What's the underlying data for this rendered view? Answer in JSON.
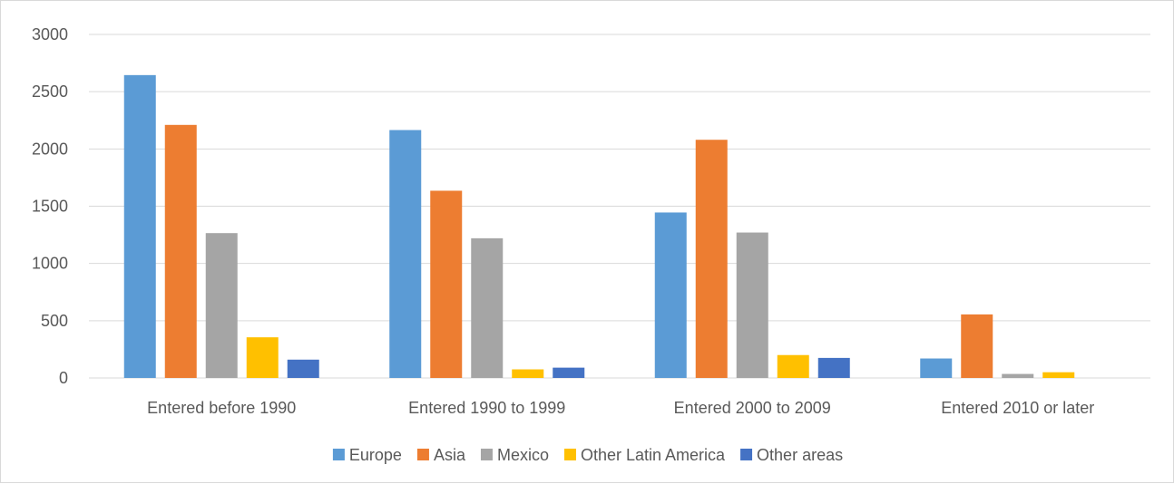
{
  "chart_data": {
    "type": "bar",
    "title": "",
    "xlabel": "",
    "ylabel": "",
    "ylim": [
      0,
      3000
    ],
    "yticks": [
      "0",
      "500",
      "1000",
      "1500",
      "2000",
      "2500",
      "3000"
    ],
    "grid": true,
    "legend_position": "bottom",
    "categories": [
      "Entered before 1990",
      "Entered 1990 to 1999",
      "Entered 2000 to 2009",
      "Entered 2010 or later"
    ],
    "series": [
      {
        "name": "Europe",
        "color": "#5b9bd5",
        "values": [
          2645,
          2165,
          1445,
          170
        ]
      },
      {
        "name": "Asia",
        "color": "#ed7d31",
        "values": [
          2210,
          1635,
          2080,
          555
        ]
      },
      {
        "name": "Mexico",
        "color": "#a5a5a5",
        "values": [
          1265,
          1220,
          1270,
          35
        ]
      },
      {
        "name": "Other Latin America",
        "color": "#ffc000",
        "values": [
          355,
          75,
          200,
          50
        ]
      },
      {
        "name": "Other areas",
        "color": "#4472c4",
        "values": [
          160,
          90,
          175,
          0
        ]
      }
    ]
  }
}
